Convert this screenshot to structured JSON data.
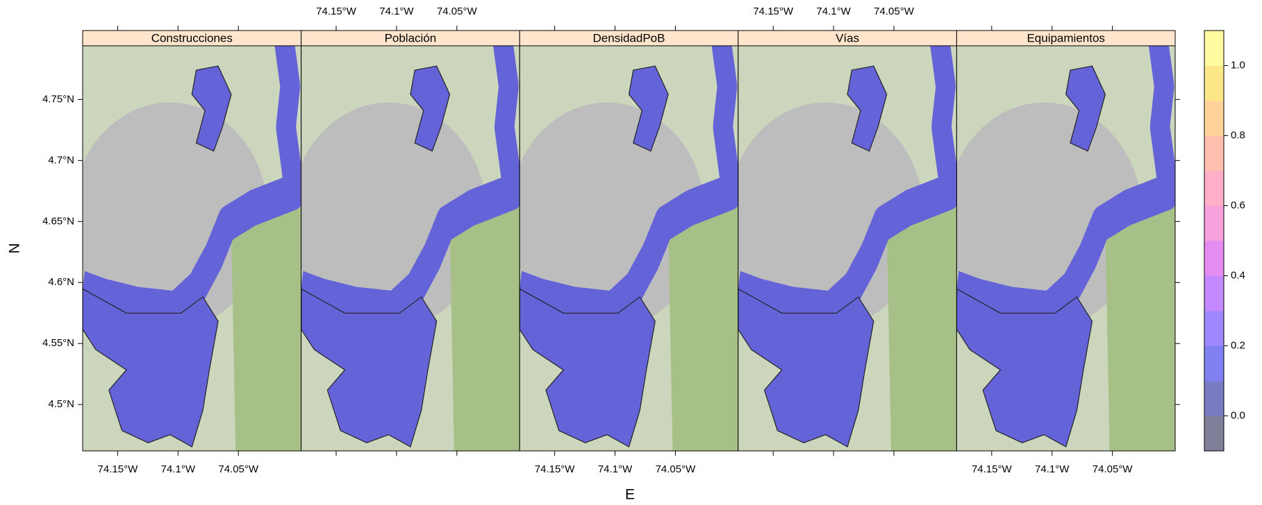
{
  "chart_data": {
    "type": "map",
    "x_label": "E",
    "y_label": "N",
    "panels": [
      "Construcciones",
      "Población",
      "DensidadPoB",
      "Vías",
      "Equipamientos"
    ],
    "xlim": [
      -74.179,
      -73.998
    ],
    "ylim": [
      4.462,
      4.794
    ],
    "xticks": [
      {
        "value": -74.15,
        "label": "74.15°W"
      },
      {
        "value": -74.1,
        "label": "74.1°W"
      },
      {
        "value": -74.05,
        "label": "74.05°W"
      }
    ],
    "yticks": [
      {
        "value": 4.5,
        "label": "4.5°N"
      },
      {
        "value": 4.55,
        "label": "4.55°N"
      },
      {
        "value": 4.6,
        "label": "4.6°N"
      },
      {
        "value": 4.65,
        "label": "4.65°N"
      },
      {
        "value": 4.7,
        "label": "4.7°N"
      },
      {
        "value": 4.75,
        "label": "4.75°N"
      }
    ],
    "colorbar": {
      "lim": [
        -0.1,
        1.1
      ],
      "ticks": [
        {
          "value": 0,
          "label": "0.0"
        },
        0.2,
        0.4,
        0.6,
        0.8,
        {
          "value": 1,
          "label": "1.0"
        }
      ],
      "colors": [
        "#7f7f9a",
        "#7b7bc4",
        "#8080f2",
        "#9f88ff",
        "#c488ff",
        "#e48cf0",
        "#f7a0dc",
        "#ffb0c8",
        "#ffbfae",
        "#ffd29a",
        "#fbe788",
        "#fdfaa0"
      ]
    }
  }
}
